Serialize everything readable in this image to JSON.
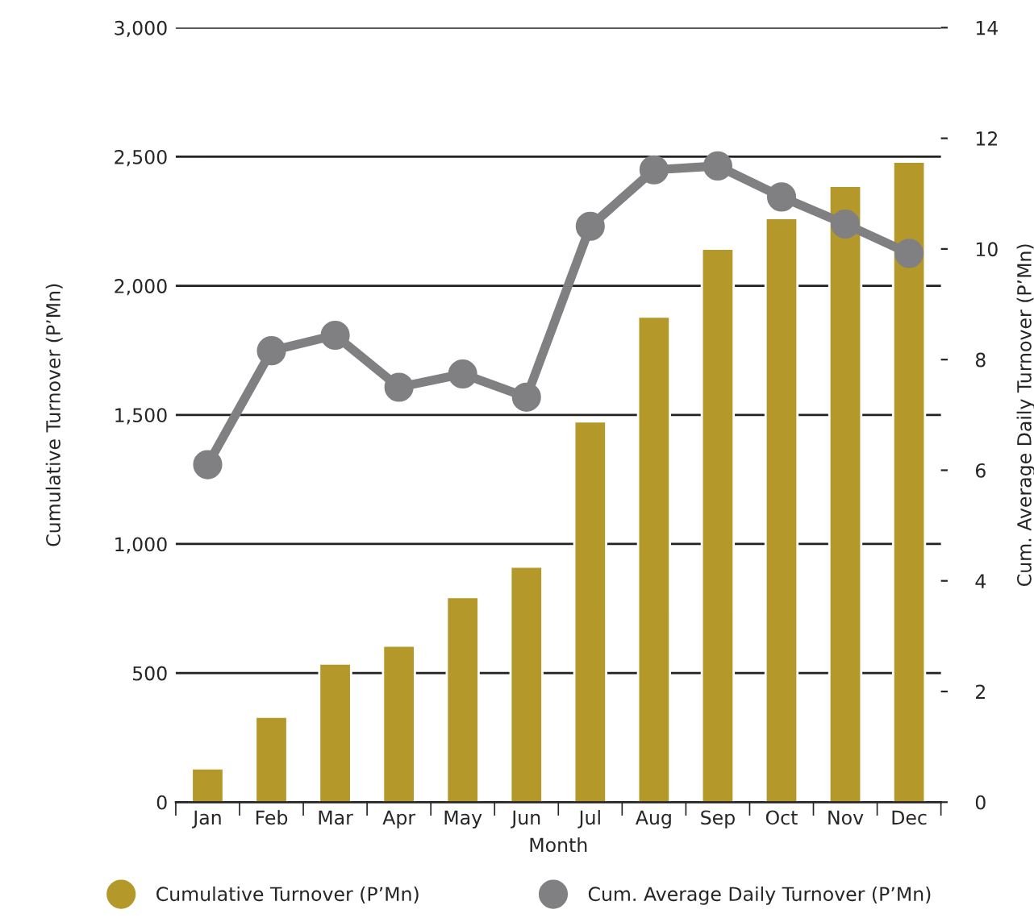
{
  "chart_data": {
    "type": "bar",
    "xlabel": "Month",
    "ylabel": "Cumulative Turnover (P’Mn)",
    "y2label": "Cum. Average Daily Turnover (P’Mn)",
    "categories": [
      "Jan",
      "Feb",
      "Mar",
      "Apr",
      "May",
      "Jun",
      "Jul",
      "Aug",
      "Sep",
      "Oct",
      "Nov",
      "Dec"
    ],
    "series": [
      {
        "name": "Cumulative Turnover (P’Mn)",
        "color": "#b5982a",
        "values": [
          131,
          331,
          537,
          606,
          794,
          912,
          1475,
          1881,
          2144,
          2262,
          2387,
          2481
        ]
      },
      {
        "name": "Cum. Average Daily Turnover (P’Mn)",
        "type": "line",
        "axis": "y2",
        "color": "#808083",
        "marker": "circle",
        "values": [
          6.1,
          8.16,
          8.44,
          7.5,
          7.74,
          7.32,
          10.41,
          11.43,
          11.5,
          10.94,
          10.45,
          9.92
        ]
      }
    ],
    "ylim": [
      0,
      3000
    ],
    "yticks": [
      {
        "value": 0,
        "label": "0"
      },
      {
        "value": 500,
        "label": "500"
      },
      {
        "value": 1000,
        "label": "1,000"
      },
      {
        "value": 1500,
        "label": "1,500"
      },
      {
        "value": 2000,
        "label": "2,000"
      },
      {
        "value": 2500,
        "label": "2,500"
      },
      {
        "value": 3000,
        "label": "3,000"
      }
    ],
    "y2lim": [
      0,
      14
    ],
    "y2ticks": [
      0,
      2,
      4,
      6,
      8,
      10,
      12,
      14
    ],
    "grid": "y",
    "legend": "bottom"
  }
}
